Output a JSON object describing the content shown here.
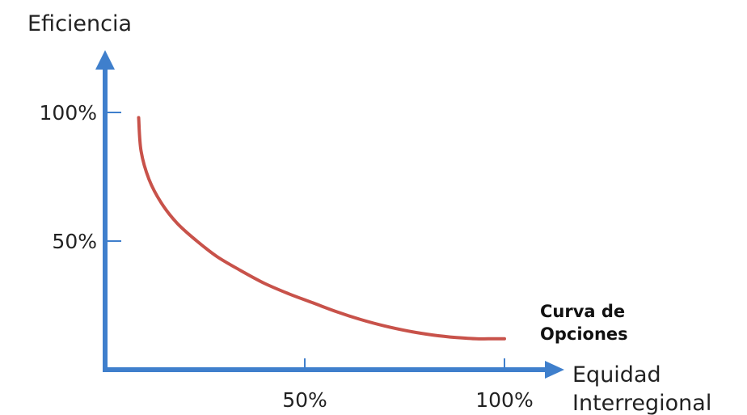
{
  "chart_data": {
    "type": "line",
    "ylabel": "Eficiencia",
    "xlabel": [
      "Equidad",
      "Interregional"
    ],
    "y_ticks": [
      {
        "value": 100,
        "label": "100%"
      },
      {
        "value": 50,
        "label": "50%"
      }
    ],
    "x_ticks": [
      {
        "value": 50,
        "label": "50%"
      },
      {
        "value": 100,
        "label": "100%"
      }
    ],
    "xlim": [
      0,
      110
    ],
    "ylim": [
      0,
      120
    ],
    "grid": false,
    "series": [
      {
        "name": "Curva de Opciones",
        "name_lines": [
          "Curva de",
          "Opciones"
        ],
        "color": "#c8524a",
        "x": [
          8.4,
          9,
          11,
          14,
          18,
          23,
          28,
          34,
          40,
          46,
          52,
          58,
          64,
          70,
          76,
          82,
          88,
          93,
          96,
          100
        ],
        "y": [
          98,
          85,
          74,
          65,
          57,
          50,
          44,
          38.5,
          33.5,
          29.5,
          26,
          22.5,
          19.5,
          17,
          15,
          13.5,
          12.5,
          12,
          12,
          12
        ]
      }
    ]
  },
  "colors": {
    "axis": "#3f7fcc",
    "curve": "#c8524a"
  }
}
